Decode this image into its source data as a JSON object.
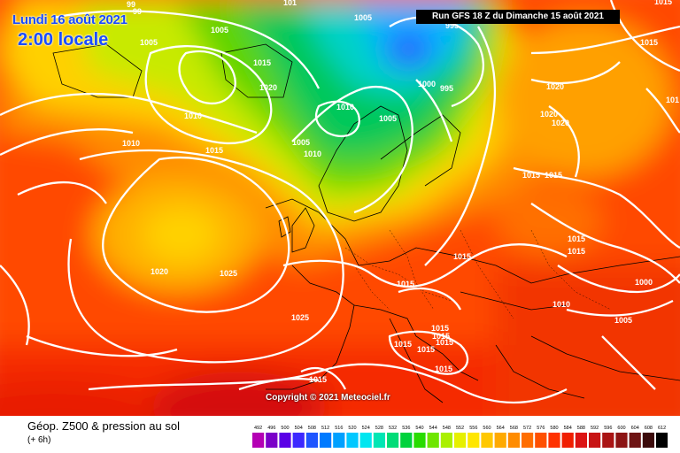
{
  "header": {
    "date": "Lundi 16 août 2021",
    "local_time": "2:00 locale",
    "run_info": "Run GFS 18 Z du Dimanche 15 août 2021"
  },
  "copyright": "Copyright © 2021 Meteociel.fr",
  "footer": {
    "title": "Géop. Z500 & pression au sol",
    "subtitle": "(+ 6h)"
  },
  "legend": {
    "ticks": [
      "492",
      "496",
      "500",
      "504",
      "508",
      "512",
      "516",
      "520",
      "524",
      "528",
      "532",
      "536",
      "540",
      "544",
      "548",
      "552",
      "556",
      "560",
      "564",
      "568",
      "572",
      "576",
      "580",
      "584",
      "588",
      "592",
      "596",
      "600",
      "604",
      "608",
      "612"
    ],
    "colors": [
      "#b400b4",
      "#7a00c8",
      "#5a00e6",
      "#3c28ff",
      "#1e55ff",
      "#007aff",
      "#00a0ff",
      "#00c8ff",
      "#00e6f0",
      "#00e6b4",
      "#00dc78",
      "#00d23c",
      "#28dc00",
      "#6ee600",
      "#aaf000",
      "#e6f000",
      "#ffe600",
      "#ffc800",
      "#ffaa00",
      "#ff8c00",
      "#ff6e00",
      "#ff5000",
      "#ff3200",
      "#f01e00",
      "#dc1414",
      "#c81414",
      "#aa1414",
      "#8c1414",
      "#6e1414",
      "#3c0a0a",
      "#000000"
    ]
  },
  "isobar_labels": [
    "1005",
    "1005",
    "1005",
    "1015",
    "1020",
    "1010",
    "1010",
    "1010",
    "1015",
    "1005",
    "1010",
    "1005",
    "1010",
    "1000",
    "995",
    "995",
    "1015",
    "1020",
    "1020",
    "1020",
    "1015",
    "1015",
    "1015",
    "1015",
    "1015",
    "1015",
    "1000",
    "1010",
    "1005",
    "1015",
    "1015",
    "1015",
    "1015",
    "1015",
    "1020",
    "1025",
    "1025",
    "1015",
    "1015",
    "101",
    "99",
    "99",
    "101",
    "1015"
  ],
  "colors": {
    "header_text": "#1a4cff",
    "isobar": "#ffffff"
  }
}
